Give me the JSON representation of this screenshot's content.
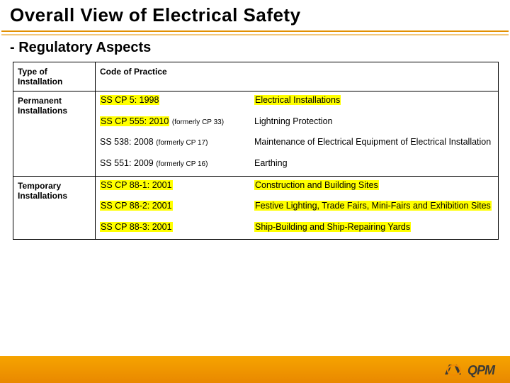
{
  "colors": {
    "rule_top": "#e28f00",
    "rule_bottom": "#f2c77a",
    "highlight": "#ffff00",
    "footer_grad_top": "#f6a400",
    "footer_grad_bottom": "#e98800",
    "logo_text": "#3b3a36",
    "logo_fill": "#3b3a36",
    "logo_orange": "#f08a00"
  },
  "title": "Overall View of Electrical Safety",
  "subtitle": "- Regulatory Aspects",
  "table": {
    "headers": {
      "col1": "Type of Installation",
      "col2": "Code of Practice"
    },
    "groups": [
      {
        "label": "Permanent Installations",
        "rows": [
          {
            "code": "SS CP 5: 1998",
            "code_hl": true,
            "suffix": "",
            "desc": "Electrical Installations",
            "desc_hl": true
          },
          {
            "code": "SS CP 555: 2010",
            "code_hl": true,
            "suffix": "(formerly CP 33)",
            "desc": "Lightning Protection",
            "desc_hl": false
          },
          {
            "code": "SS 538: 2008",
            "code_hl": false,
            "suffix": "(formerly CP 17)",
            "desc": "Maintenance of Electrical Equipment of Electrical Installation",
            "desc_hl": false
          },
          {
            "code": "SS 551: 2009",
            "code_hl": false,
            "suffix": "(formerly CP 16)",
            "desc": "Earthing",
            "desc_hl": false
          }
        ]
      },
      {
        "label": "Temporary Installations",
        "rows": [
          {
            "code": "SS CP 88-1: 2001",
            "code_hl": true,
            "suffix": "",
            "desc": "Construction and Building Sites",
            "desc_hl": true
          },
          {
            "code": "SS CP 88-2: 2001",
            "code_hl": true,
            "suffix": "",
            "desc": "Festive Lighting, Trade Fairs, Mini-Fairs and Exhibition Sites",
            "desc_hl": true
          },
          {
            "code": "SS CP 88-3: 2001",
            "code_hl": true,
            "suffix": "",
            "desc": "Ship-Building and Ship-Repairing Yards",
            "desc_hl": true
          }
        ]
      }
    ]
  },
  "logo": {
    "text": "QPM"
  }
}
